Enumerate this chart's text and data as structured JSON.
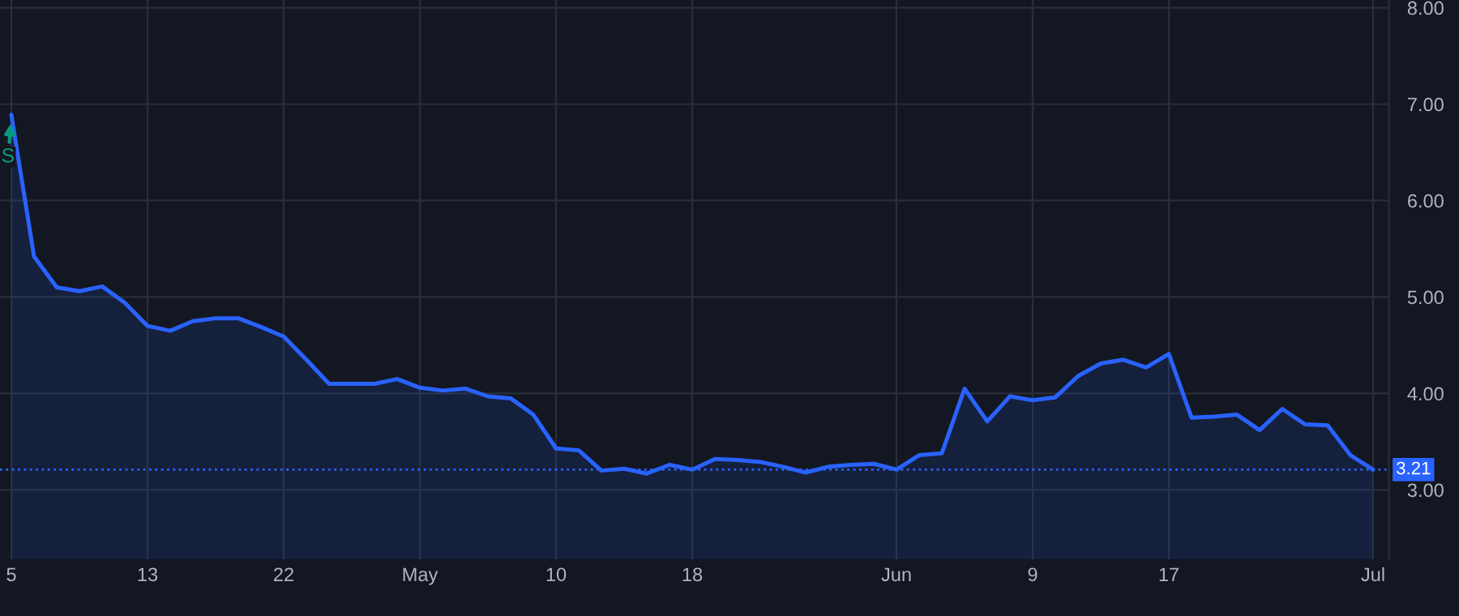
{
  "chart_data": {
    "type": "area",
    "categories": [
      "5",
      null,
      null,
      null,
      null,
      null,
      "13",
      null,
      null,
      null,
      null,
      null,
      "22",
      null,
      null,
      null,
      null,
      null,
      "May",
      null,
      null,
      null,
      null,
      null,
      "10",
      null,
      null,
      null,
      null,
      null,
      "18",
      null,
      null,
      null,
      null,
      null,
      null,
      null,
      null,
      "Jun",
      null,
      null,
      null,
      null,
      null,
      "9",
      null,
      null,
      null,
      null,
      null,
      "17",
      null,
      null,
      null,
      null,
      null,
      null,
      null,
      null,
      "Jul"
    ],
    "series": [
      {
        "color": "#2962ff",
        "values": [
          6.89,
          5.42,
          5.1,
          5.06,
          5.11,
          4.94,
          4.7,
          4.65,
          4.75,
          4.78,
          4.78,
          4.69,
          4.59,
          4.35,
          4.1,
          4.1,
          4.1,
          4.15,
          4.06,
          4.03,
          4.05,
          3.97,
          3.95,
          3.78,
          3.43,
          3.41,
          3.2,
          3.22,
          3.17,
          3.26,
          3.21,
          3.32,
          3.31,
          3.29,
          3.24,
          3.18,
          3.24,
          3.26,
          3.27,
          3.21,
          3.36,
          3.38,
          4.05,
          3.71,
          3.97,
          3.93,
          3.96,
          4.18,
          4.31,
          4.35,
          4.27,
          4.41,
          3.75,
          3.76,
          3.78,
          3.62,
          3.84,
          3.68,
          3.67,
          3.36,
          3.21
        ]
      }
    ],
    "ylim": [
      2.28,
      8.08
    ],
    "yticks": [
      {
        "value": 3,
        "label": "3.00"
      },
      {
        "value": 4,
        "label": "4.00"
      },
      {
        "value": 5,
        "label": "5.00"
      },
      {
        "value": 6,
        "label": "6.00"
      },
      {
        "value": 7,
        "label": "7.00"
      },
      {
        "value": 8,
        "label": "8.00"
      }
    ],
    "ref_lines": [
      {
        "axis": "y",
        "value": 3.21,
        "label": "3.21",
        "color": "#2962ff",
        "line_style": "dotted"
      }
    ],
    "annotations": [
      {
        "text": "S",
        "x": "5",
        "y": 6.85
      }
    ],
    "grid": true,
    "legend": false
  }
}
